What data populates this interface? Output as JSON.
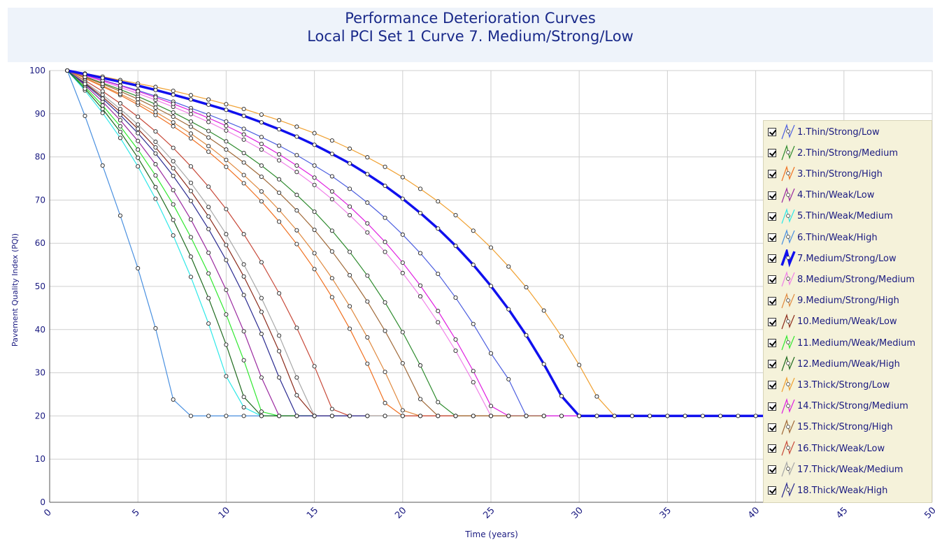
{
  "chart_data": {
    "type": "line",
    "title": "Performance Deterioration Curves",
    "subtitle": "Local PCI Set 1    Curve 7. Medium/Strong/Low",
    "xlabel": "Time (years)",
    "ylabel": "Pavement Quality Index (PQI)",
    "xlim": [
      0,
      50
    ],
    "ylim": [
      0,
      100
    ],
    "xticks": [
      0,
      5,
      10,
      15,
      20,
      25,
      30,
      35,
      40,
      45,
      50
    ],
    "yticks": [
      0,
      10,
      20,
      30,
      40,
      50,
      60,
      70,
      80,
      90,
      100
    ],
    "grid": true,
    "legend_position": "right",
    "floor_value": 20,
    "highlighted_series": "7.Medium/Strong/Low",
    "series": [
      {
        "name": "1.Thin/Strong/Low",
        "color": "#4d5fe0",
        "x": [
          1,
          2,
          3,
          4,
          5,
          6,
          7,
          8,
          9,
          10,
          11,
          12,
          13,
          14,
          15,
          16,
          17,
          18,
          19,
          20,
          21,
          22,
          23,
          24,
          25,
          26,
          27,
          28,
          29,
          30,
          31
        ],
        "y": [
          100,
          98.9,
          97.8,
          96.6,
          95.4,
          94.1,
          92.8,
          91.3,
          89.8,
          88.2,
          86.5,
          84.6,
          82.6,
          80.4,
          78,
          75.5,
          72.6,
          69.4,
          65.9,
          62,
          57.7,
          52.9,
          47.4,
          41.3,
          34.5,
          28.5,
          20,
          20,
          20,
          20,
          20
        ]
      },
      {
        "name": "2.Thin/Strong/Medium",
        "color": "#2e8b2e",
        "x": [
          1,
          2,
          3,
          4,
          5,
          6,
          7,
          8,
          9,
          10,
          11,
          12,
          13,
          14,
          15,
          16,
          17,
          18,
          19,
          20,
          21,
          22,
          23,
          24,
          25,
          26,
          27,
          28
        ],
        "y": [
          100,
          98.6,
          97.1,
          95.6,
          94,
          92.2,
          90.3,
          88.2,
          86,
          83.6,
          80.9,
          78,
          74.8,
          71.2,
          67.3,
          62.9,
          58,
          52.5,
          46.3,
          39.4,
          31.7,
          23.2,
          20,
          20,
          20,
          20,
          20,
          20
        ]
      },
      {
        "name": "3.Thin/Strong/High",
        "color": "#f07020",
        "x": [
          1,
          2,
          3,
          4,
          5,
          6,
          7,
          8,
          9,
          10,
          11,
          12,
          13,
          14,
          15,
          16,
          17,
          18,
          19,
          20,
          21,
          22,
          23,
          24,
          25
        ],
        "y": [
          100,
          98.2,
          96.3,
          94.3,
          92.1,
          89.7,
          87.1,
          84.3,
          81.2,
          77.7,
          73.9,
          69.7,
          65,
          59.8,
          54,
          47.5,
          40.2,
          32.1,
          23,
          20,
          20,
          20,
          20,
          20,
          20
        ]
      },
      {
        "name": "4.Thin/Weak/Low",
        "color": "#9b2aa0",
        "x": [
          1,
          2,
          3,
          4,
          5,
          6,
          7,
          8,
          9,
          10,
          11,
          12,
          13,
          14,
          15,
          16
        ],
        "y": [
          100,
          96.6,
          92.8,
          88.5,
          83.7,
          78.3,
          72.3,
          65.5,
          57.8,
          49.2,
          39.6,
          28.9,
          20,
          20,
          20,
          20
        ]
      },
      {
        "name": "5.Thin/Weak/Medium",
        "color": "#2ee8e8",
        "x": [
          1,
          2,
          3,
          4,
          5,
          6,
          7,
          8,
          9,
          10,
          11,
          12,
          13,
          14,
          15
        ],
        "y": [
          100,
          95.4,
          90.2,
          84.4,
          77.8,
          70.3,
          61.8,
          52.2,
          41.4,
          29.2,
          22,
          20,
          20,
          20,
          20
        ]
      },
      {
        "name": "6.Thin/Weak/High",
        "color": "#4a90e0",
        "x": [
          1,
          2,
          3,
          4,
          5,
          6,
          7,
          8,
          9,
          10,
          11,
          12,
          13,
          14,
          15
        ],
        "y": [
          100,
          89.5,
          78,
          66.4,
          54.2,
          40.3,
          23.8,
          20,
          20,
          20,
          20,
          20,
          20,
          20,
          20
        ]
      },
      {
        "name": "7.Medium/Strong/Low",
        "color": "#1010ee",
        "x": [
          1,
          2,
          3,
          4,
          5,
          6,
          7,
          8,
          9,
          10,
          11,
          12,
          13,
          14,
          15,
          16,
          17,
          18,
          19,
          20,
          21,
          22,
          23,
          24,
          25,
          26,
          27,
          28,
          29,
          30,
          31,
          32,
          33,
          34,
          35,
          36,
          37,
          38,
          39,
          40,
          41,
          42
        ],
        "y": [
          100,
          99.2,
          98.3,
          97.4,
          96.5,
          95.5,
          94.4,
          93.3,
          92.1,
          90.9,
          89.5,
          88,
          86.4,
          84.7,
          82.8,
          80.7,
          78.5,
          76,
          73.3,
          70.3,
          67,
          63.4,
          59.4,
          55,
          50.1,
          44.7,
          38.7,
          32,
          24.6,
          20,
          20,
          20,
          20,
          20,
          20,
          20,
          20,
          20,
          20,
          20,
          20,
          20
        ]
      },
      {
        "name": "8.Medium/Strong/Medium",
        "color": "#f080e8",
        "x": [
          1,
          2,
          3,
          4,
          5,
          6,
          7,
          8,
          9,
          10,
          11,
          12,
          13,
          14,
          15,
          16,
          17,
          18,
          19,
          20,
          21,
          22,
          23,
          24,
          25,
          26,
          27,
          28,
          29,
          30
        ],
        "y": [
          100,
          98.8,
          97.5,
          96.1,
          94.7,
          93.2,
          91.6,
          89.9,
          88.1,
          86.1,
          84,
          81.7,
          79.2,
          76.5,
          73.5,
          70.2,
          66.5,
          62.5,
          58,
          53.1,
          47.7,
          41.7,
          35.1,
          27.8,
          20,
          20,
          20,
          20,
          20,
          20
        ]
      },
      {
        "name": "9.Medium/Strong/High",
        "color": "#e08a40",
        "x": [
          1,
          2,
          3,
          4,
          5,
          6,
          7,
          8,
          9,
          10,
          11,
          12,
          13,
          14,
          15,
          16,
          17,
          18,
          19,
          20,
          21,
          22,
          23,
          24,
          25,
          26
        ],
        "y": [
          100,
          98.3,
          96.5,
          94.6,
          92.6,
          90.4,
          88,
          85.4,
          82.5,
          79.3,
          75.8,
          72,
          67.7,
          63,
          57.7,
          51.9,
          45.4,
          38.2,
          30.2,
          21.3,
          20,
          20,
          20,
          20,
          20,
          20
        ]
      },
      {
        "name": "10.Medium/Weak/Low",
        "color": "#8b2a1a",
        "x": [
          1,
          2,
          3,
          4,
          5,
          6,
          7,
          8,
          9,
          10,
          11,
          12,
          13,
          14,
          15,
          16,
          17
        ],
        "y": [
          100,
          97.1,
          93.9,
          90.4,
          86.5,
          82.2,
          77.4,
          72.1,
          66.2,
          59.6,
          52.3,
          44.1,
          35,
          24.8,
          20,
          20,
          20
        ]
      },
      {
        "name": "11.Medium/Weak/Medium",
        "color": "#30e830",
        "x": [
          1,
          2,
          3,
          4,
          5,
          6,
          7,
          8,
          9,
          10,
          11,
          12,
          13,
          14,
          15
        ],
        "y": [
          100,
          96.2,
          91.9,
          87.1,
          81.7,
          75.7,
          69,
          61.4,
          53,
          43.5,
          32.9,
          21,
          20,
          20,
          20
        ]
      },
      {
        "name": "12.Medium/Weak/High",
        "color": "#1e6a1e",
        "x": [
          1,
          2,
          3,
          4,
          5,
          6,
          7,
          8,
          9,
          10,
          11,
          12,
          13,
          14,
          15
        ],
        "y": [
          100,
          95.8,
          91.1,
          85.8,
          79.8,
          73,
          65.4,
          56.9,
          47.3,
          36.5,
          24.4,
          20,
          20,
          20,
          20
        ]
      },
      {
        "name": "13.Thick/Strong/Low",
        "color": "#f0a030",
        "x": [
          1,
          2,
          3,
          4,
          5,
          6,
          7,
          8,
          9,
          10,
          11,
          12,
          13,
          14,
          15,
          16,
          17,
          18,
          19,
          20,
          21,
          22,
          23,
          24,
          25,
          26,
          27,
          28,
          29,
          30,
          31,
          32,
          33,
          34,
          35,
          36
        ],
        "y": [
          100,
          99.3,
          98.6,
          97.8,
          97,
          96.2,
          95.3,
          94.3,
          93.3,
          92.2,
          91.1,
          89.8,
          88.5,
          87,
          85.5,
          83.8,
          81.9,
          79.9,
          77.7,
          75.3,
          72.6,
          69.7,
          66.5,
          62.9,
          59,
          54.6,
          49.8,
          44.4,
          38.4,
          31.8,
          24.5,
          20,
          20,
          20,
          20,
          20
        ]
      },
      {
        "name": "14.Thick/Strong/Medium",
        "color": "#e020e0",
        "x": [
          1,
          2,
          3,
          4,
          5,
          6,
          7,
          8,
          9,
          10,
          11,
          12,
          13,
          14,
          15,
          16,
          17,
          18,
          19,
          20,
          21,
          22,
          23,
          24,
          25,
          26,
          27,
          28,
          29,
          30,
          31
        ],
        "y": [
          100,
          98.9,
          97.7,
          96.5,
          95.2,
          93.8,
          92.3,
          90.7,
          89,
          87.2,
          85.2,
          83,
          80.6,
          78,
          75.2,
          72,
          68.5,
          64.6,
          60.3,
          55.5,
          50.2,
          44.3,
          37.7,
          30.4,
          22.3,
          20,
          20,
          20,
          20,
          20,
          20
        ]
      },
      {
        "name": "15.Thick/Strong/High",
        "color": "#a06a3a",
        "x": [
          1,
          2,
          3,
          4,
          5,
          6,
          7,
          8,
          9,
          10,
          11,
          12,
          13,
          14,
          15,
          16,
          17,
          18,
          19,
          20,
          21,
          22,
          23,
          24,
          25,
          26,
          27,
          28
        ],
        "y": [
          100,
          98.5,
          96.9,
          95.2,
          93.4,
          91.4,
          89.3,
          87,
          84.5,
          81.7,
          78.7,
          75.4,
          71.7,
          67.6,
          63.1,
          58.1,
          52.6,
          46.5,
          39.7,
          32.2,
          23.9,
          20,
          20,
          20,
          20,
          20,
          20,
          20
        ]
      },
      {
        "name": "16.Thick/Weak/Low",
        "color": "#c84a3a",
        "x": [
          1,
          2,
          3,
          4,
          5,
          6,
          7,
          8,
          9,
          10,
          11,
          12,
          13,
          14,
          15,
          16,
          17,
          18,
          19,
          20,
          21,
          22,
          23
        ],
        "y": [
          100,
          97.7,
          95.2,
          92.4,
          89.3,
          85.9,
          82.1,
          77.8,
          73.1,
          67.9,
          62.1,
          55.6,
          48.4,
          40.4,
          31.5,
          21.6,
          20,
          20,
          20,
          20,
          20,
          20,
          20
        ]
      },
      {
        "name": "17.Thick/Weak/Medium",
        "color": "#a8a8a8",
        "x": [
          1,
          2,
          3,
          4,
          5,
          6,
          7,
          8,
          9,
          10,
          11,
          12,
          13,
          14,
          15,
          16,
          17,
          18,
          19,
          20
        ],
        "y": [
          100,
          97.3,
          94.4,
          91.1,
          87.5,
          83.5,
          79,
          74,
          68.4,
          62.1,
          55.1,
          47.3,
          38.6,
          28.9,
          20,
          20,
          20,
          20,
          20,
          20
        ]
      },
      {
        "name": "18.Thick/Weak/High",
        "color": "#2a2a90",
        "x": [
          1,
          2,
          3,
          4,
          5,
          6,
          7,
          8,
          9,
          10,
          11,
          12,
          13,
          14,
          15,
          16,
          17,
          18
        ],
        "y": [
          100,
          96.9,
          93.5,
          89.7,
          85.5,
          80.8,
          75.6,
          69.8,
          63.3,
          56.1,
          48,
          39,
          28.9,
          20,
          20,
          20,
          20,
          20
        ]
      }
    ]
  }
}
